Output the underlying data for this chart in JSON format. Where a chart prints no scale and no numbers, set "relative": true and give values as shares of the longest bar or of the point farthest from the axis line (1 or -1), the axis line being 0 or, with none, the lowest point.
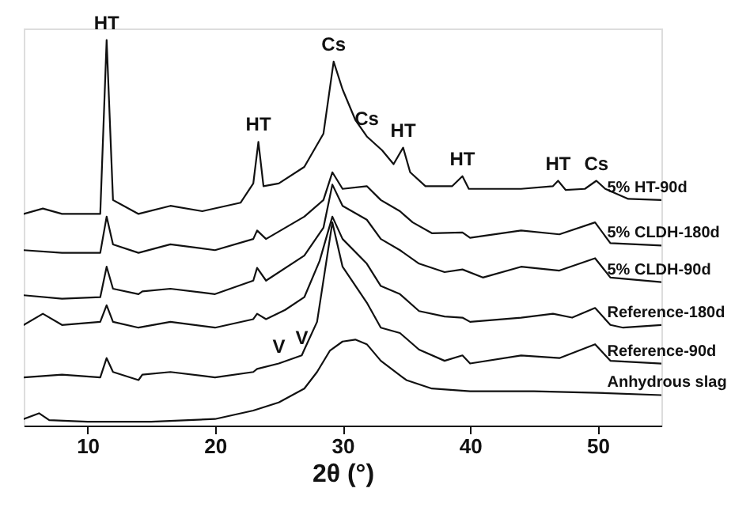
{
  "chart_data": {
    "type": "line",
    "relative": true,
    "xlabel": "2θ (°)",
    "xlim": [
      5,
      55
    ],
    "xticks": [
      10,
      20,
      30,
      40,
      50
    ],
    "tick_labels": "x",
    "grid": false,
    "series": [
      {
        "name": "5% HT-90d",
        "color": "#111111",
        "x": [
          5,
          6.5,
          8,
          11,
          11.5,
          12,
          14,
          16.5,
          19,
          22,
          23,
          23.4,
          23.8,
          25,
          27,
          28.5,
          29.3,
          30,
          31,
          31.9,
          33.1,
          34,
          34.75,
          35.3,
          36.5,
          38.6,
          39.4,
          39.9,
          44,
          46.5,
          46.9,
          47.5,
          49,
          49.9,
          50.6,
          52.4,
          55
        ],
        "values": [
          0.549,
          0.563,
          0.549,
          0.549,
          1,
          0.585,
          0.549,
          0.57,
          0.556,
          0.578,
          0.628,
          0.736,
          0.621,
          0.628,
          0.671,
          0.757,
          0.944,
          0.872,
          0.793,
          0.75,
          0.714,
          0.678,
          0.721,
          0.657,
          0.621,
          0.621,
          0.647,
          0.614,
          0.614,
          0.621,
          0.635,
          0.611,
          0.614,
          0.635,
          0.614,
          0.588,
          0.585
        ]
      },
      {
        "name": "5% CLDH-180d",
        "color": "#111111",
        "x": [
          5,
          8,
          11,
          11.5,
          12,
          14,
          16.5,
          20,
          23,
          23.3,
          24,
          27,
          28.5,
          29.2,
          30,
          31.9,
          33,
          34.5,
          35.5,
          37,
          39.4,
          40,
          44,
          47,
          49.8,
          51,
          55
        ],
        "values": [
          0.455,
          0.448,
          0.448,
          0.542,
          0.47,
          0.448,
          0.47,
          0.455,
          0.484,
          0.506,
          0.484,
          0.542,
          0.585,
          0.657,
          0.614,
          0.621,
          0.585,
          0.556,
          0.527,
          0.499,
          0.501,
          0.487,
          0.506,
          0.496,
          0.527,
          0.473,
          0.467
        ]
      },
      {
        "name": "5% CLDH-90d",
        "color": "#111111",
        "x": [
          5,
          8,
          11,
          11.5,
          12,
          14,
          14.3,
          16.5,
          20,
          23,
          23.3,
          24,
          27,
          28.5,
          29.2,
          30,
          31.9,
          33,
          34.5,
          36,
          38,
          39.4,
          41,
          44,
          47,
          49.8,
          51,
          55
        ],
        "values": [
          0.338,
          0.329,
          0.333,
          0.412,
          0.355,
          0.341,
          0.348,
          0.355,
          0.341,
          0.376,
          0.409,
          0.376,
          0.441,
          0.513,
          0.625,
          0.57,
          0.534,
          0.484,
          0.455,
          0.42,
          0.398,
          0.405,
          0.384,
          0.412,
          0.402,
          0.434,
          0.384,
          0.372
        ]
      },
      {
        "name": "Reference-180d",
        "color": "#111111",
        "x": [
          5,
          6.5,
          8,
          11,
          11.5,
          12,
          14,
          16.5,
          20,
          23,
          23.3,
          24,
          25.5,
          27,
          28.2,
          29.2,
          30,
          31.9,
          33,
          34.5,
          36,
          38,
          39.4,
          40,
          44,
          46.5,
          48,
          49.8,
          51,
          52,
          55
        ],
        "values": [
          0.261,
          0.29,
          0.261,
          0.269,
          0.312,
          0.269,
          0.254,
          0.269,
          0.254,
          0.276,
          0.29,
          0.276,
          0.3,
          0.333,
          0.427,
          0.542,
          0.484,
          0.42,
          0.362,
          0.341,
          0.297,
          0.283,
          0.28,
          0.269,
          0.28,
          0.29,
          0.28,
          0.305,
          0.261,
          0.254,
          0.261
        ]
      },
      {
        "name": "Reference-90d",
        "color": "#111111",
        "x": [
          5,
          8,
          11,
          11.5,
          12,
          14,
          14.3,
          16.5,
          20,
          23,
          23.3,
          25,
          26.8,
          27,
          28,
          29.2,
          30,
          31.9,
          33,
          34.5,
          36,
          38,
          39.4,
          40,
          44,
          47,
          49.8,
          51,
          55
        ],
        "values": [
          0.125,
          0.132,
          0.125,
          0.175,
          0.139,
          0.118,
          0.132,
          0.139,
          0.125,
          0.139,
          0.147,
          0.161,
          0.182,
          0.197,
          0.269,
          0.527,
          0.412,
          0.319,
          0.254,
          0.24,
          0.197,
          0.168,
          0.182,
          0.161,
          0.182,
          0.175,
          0.211,
          0.168,
          0.161
        ]
      },
      {
        "name": "Anhydrous slag",
        "color": "#111111",
        "x": [
          5,
          6.2,
          7,
          10,
          15,
          20,
          23,
          25,
          27,
          28,
          29,
          30,
          31,
          31.9,
          33,
          35,
          37,
          40,
          45,
          50,
          55
        ],
        "values": [
          0.017,
          0.032,
          0.014,
          0.01,
          0.01,
          0.017,
          0.039,
          0.06,
          0.096,
          0.139,
          0.194,
          0.218,
          0.223,
          0.211,
          0.168,
          0.118,
          0.096,
          0.089,
          0.089,
          0.085,
          0.079
        ]
      }
    ],
    "annotations": [
      {
        "text": "HT",
        "x": 11.5,
        "y": 1
      },
      {
        "text": "HT",
        "x": 23.4,
        "y": 0.736
      },
      {
        "text": "Cs",
        "x": 29.3,
        "y": 0.944
      },
      {
        "text": "Cs",
        "x": 31.9,
        "y": 0.75
      },
      {
        "text": "HT",
        "x": 34.75,
        "y": 0.721
      },
      {
        "text": "HT",
        "x": 39.4,
        "y": 0.647
      },
      {
        "text": "HT",
        "x": 46.9,
        "y": 0.635
      },
      {
        "text": "Cs",
        "x": 49.9,
        "y": 0.635
      },
      {
        "text": "V",
        "x": 25,
        "y": 0.161
      },
      {
        "text": "V",
        "x": 26.8,
        "y": 0.182
      }
    ]
  }
}
